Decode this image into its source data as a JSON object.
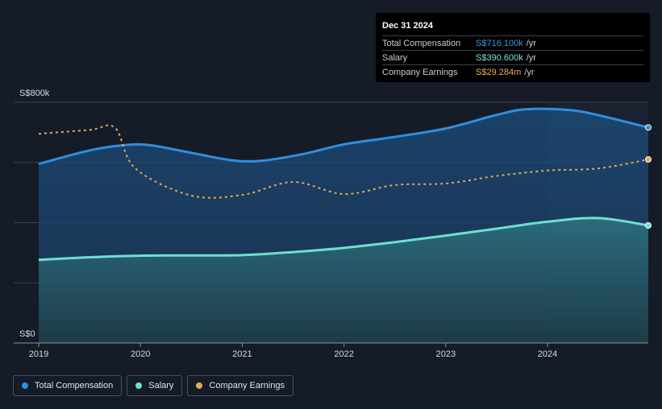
{
  "tooltip": {
    "date": "Dec 31 2024",
    "rows": [
      {
        "label": "Total Compensation",
        "value": "S$716.100k",
        "unit": "/yr",
        "color": "#3b9ae1"
      },
      {
        "label": "Salary",
        "value": "S$390.600k",
        "unit": "/yr",
        "color": "#7ee8d4"
      },
      {
        "label": "Company Earnings",
        "value": "S$29.284m",
        "unit": "/yr",
        "color": "#e8b062"
      }
    ]
  },
  "legend": [
    {
      "label": "Total Compensation",
      "color": "#2e8fe0"
    },
    {
      "label": "Salary",
      "color": "#6ee0cf"
    },
    {
      "label": "Company Earnings",
      "color": "#e8a857"
    }
  ],
  "chart_data": {
    "type": "area",
    "y_tick_labels": [
      "S$800k",
      "S$0"
    ],
    "ylim": [
      0,
      800
    ],
    "x_ticks": [
      2019,
      2020,
      2021,
      2022,
      2023,
      2024
    ],
    "xlim": [
      2019.0,
      2024.99
    ],
    "grid": true,
    "legend_position": "bottom-left",
    "series": [
      {
        "name": "Total Compensation",
        "color": "#2e8fe0",
        "points": [
          [
            2019.0,
            595
          ],
          [
            2019.5,
            640
          ],
          [
            2019.85,
            658
          ],
          [
            2020.1,
            657
          ],
          [
            2020.5,
            632
          ],
          [
            2020.9,
            607
          ],
          [
            2021.2,
            606
          ],
          [
            2021.6,
            628
          ],
          [
            2022.0,
            660
          ],
          [
            2022.5,
            685
          ],
          [
            2023.0,
            713
          ],
          [
            2023.5,
            758
          ],
          [
            2023.8,
            777
          ],
          [
            2024.25,
            773
          ],
          [
            2024.6,
            749
          ],
          [
            2024.99,
            716.1
          ]
        ]
      },
      {
        "name": "Salary",
        "color": "#6ee0cf",
        "points": [
          [
            2019.0,
            276
          ],
          [
            2019.5,
            285
          ],
          [
            2020.0,
            290
          ],
          [
            2020.5,
            291
          ],
          [
            2021.0,
            292
          ],
          [
            2021.5,
            302
          ],
          [
            2022.0,
            316
          ],
          [
            2022.5,
            335
          ],
          [
            2023.0,
            357
          ],
          [
            2023.5,
            380
          ],
          [
            2024.0,
            403
          ],
          [
            2024.5,
            415
          ],
          [
            2024.99,
            390.6
          ]
        ]
      },
      {
        "name": "Company Earnings",
        "color": "#e8a857",
        "dashed": true,
        "points": [
          [
            2019.0,
            695
          ],
          [
            2019.5,
            708
          ],
          [
            2019.75,
            715
          ],
          [
            2019.95,
            580
          ],
          [
            2020.5,
            490
          ],
          [
            2021.0,
            492
          ],
          [
            2021.5,
            535
          ],
          [
            2022.0,
            495
          ],
          [
            2022.5,
            525
          ],
          [
            2023.0,
            530
          ],
          [
            2023.5,
            555
          ],
          [
            2024.0,
            573
          ],
          [
            2024.5,
            580
          ],
          [
            2024.99,
            610
          ]
        ]
      }
    ]
  }
}
